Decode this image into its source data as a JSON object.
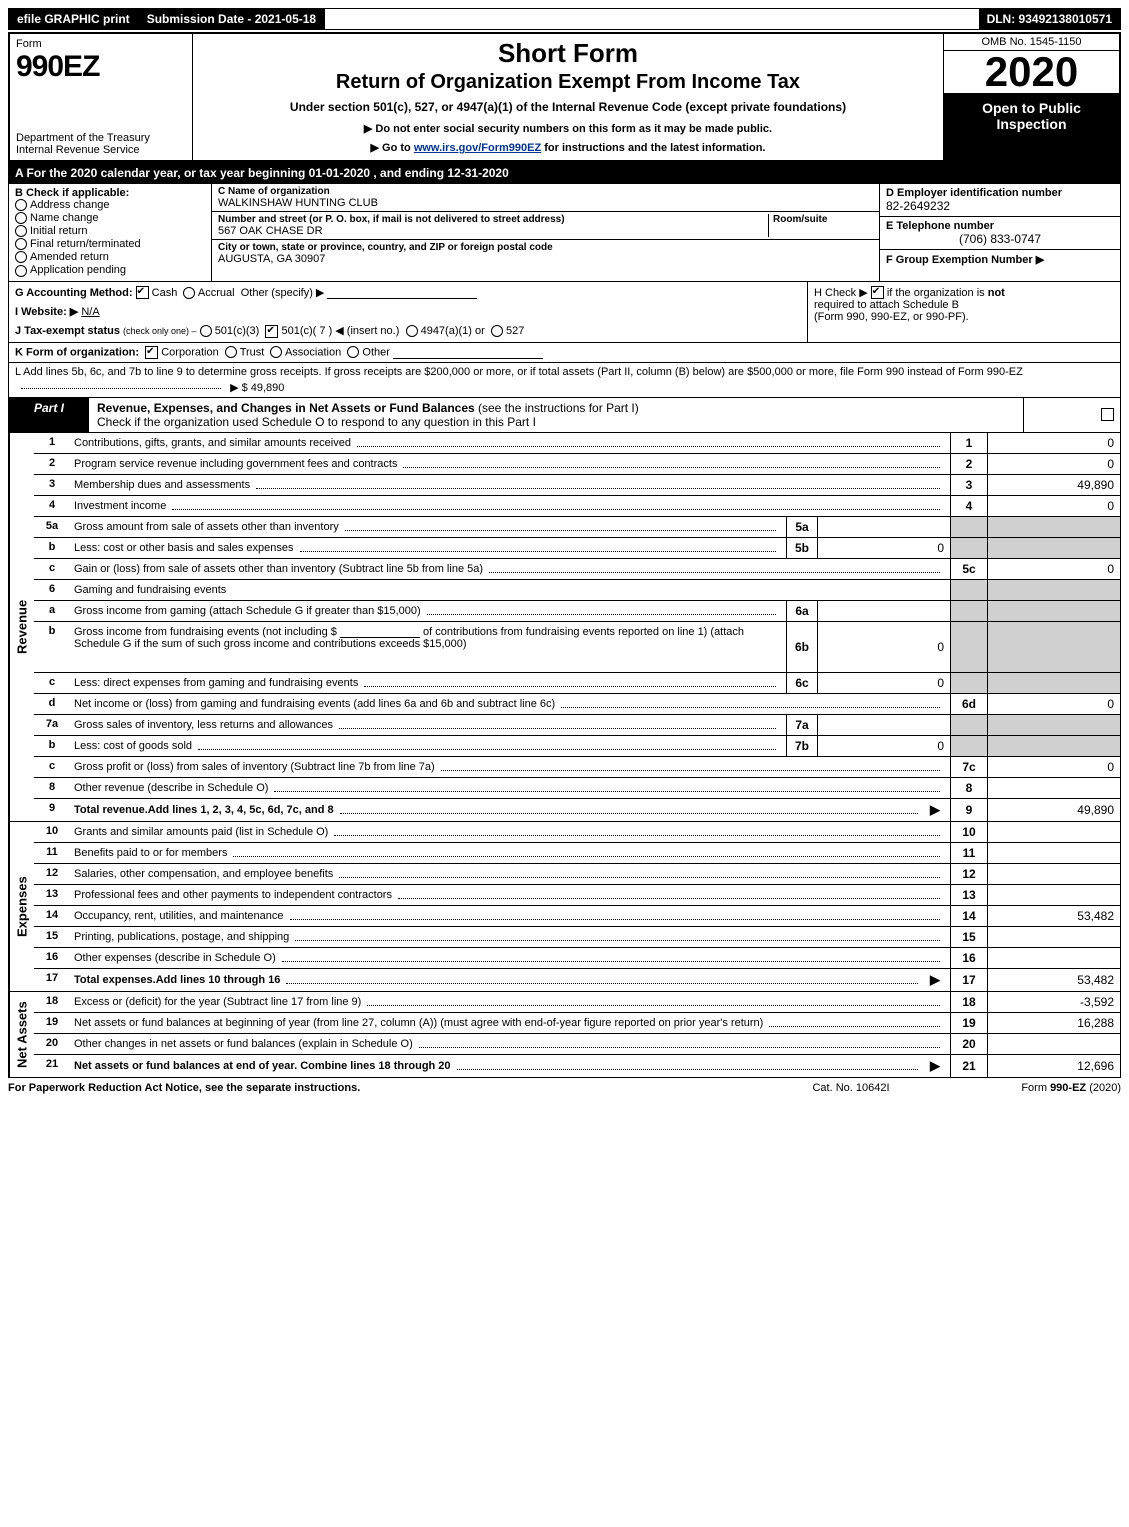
{
  "topbar": {
    "efile": "efile GRAPHIC print",
    "submission_label": "Submission Date - 2021-05-18",
    "dln": "DLN: 93492138010571"
  },
  "header": {
    "form_label": "Form",
    "form_number": "990EZ",
    "dept": "Department of the Treasury",
    "irs": "Internal Revenue Service",
    "short_form": "Short Form",
    "return_line": "Return of Organization Exempt From Income Tax",
    "under_section": "Under section 501(c), 527, or 4947(a)(1) of the Internal Revenue Code (except private foundations)",
    "donot": "▶ Do not enter social security numbers on this form as it may be made public.",
    "goto_pre": "▶ Go to ",
    "goto_link": "www.irs.gov/Form990EZ",
    "goto_post": " for instructions and the latest information.",
    "omb": "OMB No. 1545-1150",
    "year": "2020",
    "open_public": "Open to Public Inspection"
  },
  "period": "A For the 2020 calendar year, or tax year beginning 01-01-2020 , and ending 12-31-2020",
  "sectionB": {
    "title": "B Check if applicable:",
    "items": [
      "Address change",
      "Name change",
      "Initial return",
      "Final return/terminated",
      "Amended return",
      "Application pending"
    ]
  },
  "sectionC": {
    "name_label": "C Name of organization",
    "name_val": "WALKINSHAW HUNTING CLUB",
    "addr_label": "Number and street (or P. O. box, if mail is not delivered to street address)",
    "room_label": "Room/suite",
    "addr_val": "567 OAK CHASE DR",
    "city_label": "City or town, state or province, country, and ZIP or foreign postal code",
    "city_val": "AUGUSTA, GA   30907"
  },
  "sectionD": {
    "label": "D Employer identification number",
    "val": "82-2649232"
  },
  "sectionE": {
    "label": "E Telephone number",
    "val": "(706) 833-0747"
  },
  "sectionF": {
    "label": "F Group Exemption Number   ▶"
  },
  "sectionG": {
    "label": "G Accounting Method:",
    "cash": "Cash",
    "accrual": "Accrual",
    "other": "Other (specify) ▶"
  },
  "sectionH": {
    "text_pre": "H Check  ▶ ",
    "text_post": " if the organization is ",
    "not": "not",
    "line2": "required to attach Schedule B",
    "line3": "(Form 990, 990-EZ, or 990-PF)."
  },
  "sectionI": {
    "label": "I Website: ▶",
    "val": "N/A"
  },
  "sectionJ": {
    "label": "J Tax-exempt status",
    "hint": "(check only one) –",
    "opt1": "501(c)(3)",
    "opt2": "501(c)( 7 ) ◀ (insert no.)",
    "opt3": "4947(a)(1) or",
    "opt4": "527"
  },
  "sectionK": {
    "label": "K Form of organization:",
    "opts": [
      "Corporation",
      "Trust",
      "Association",
      "Other"
    ],
    "checked": 0
  },
  "sectionL": {
    "text": "L Add lines 5b, 6c, and 7b to line 9 to determine gross receipts. If gross receipts are $200,000 or more, or if total assets (Part II, column (B) below) are $500,000 or more, file Form 990 instead of Form 990-EZ",
    "arrow": "▶",
    "amount": "$ 49,890"
  },
  "partI": {
    "label": "Part I",
    "title": "Revenue, Expenses, and Changes in Net Assets or Fund Balances",
    "title_sub": " (see the instructions for Part I)",
    "schedule_o_line": "Check if the organization used Schedule O to respond to any question in this Part I",
    "schedule_o_box_val": ""
  },
  "revenue_label": "Revenue",
  "expenses_label": "Expenses",
  "netassets_label": "Net Assets",
  "lines": {
    "l1": {
      "num": "1",
      "desc": "Contributions, gifts, grants, and similar amounts received",
      "rn": "1",
      "val": "0"
    },
    "l2": {
      "num": "2",
      "desc": "Program service revenue including government fees and contracts",
      "rn": "2",
      "val": "0"
    },
    "l3": {
      "num": "3",
      "desc": "Membership dues and assessments",
      "rn": "3",
      "val": "49,890"
    },
    "l4": {
      "num": "4",
      "desc": "Investment income",
      "rn": "4",
      "val": "0"
    },
    "l5a": {
      "num": "5a",
      "desc": "Gross amount from sale of assets other than inventory",
      "in": "5a",
      "iv": ""
    },
    "l5b": {
      "num": "b",
      "desc": "Less: cost or other basis and sales expenses",
      "in": "5b",
      "iv": "0"
    },
    "l5c": {
      "num": "c",
      "desc": "Gain or (loss) from sale of assets other than inventory (Subtract line 5b from line 5a)",
      "rn": "5c",
      "val": "0"
    },
    "l6": {
      "num": "6",
      "desc": "Gaming and fundraising events"
    },
    "l6a": {
      "num": "a",
      "desc": "Gross income from gaming (attach Schedule G if greater than $15,000)",
      "in": "6a",
      "iv": ""
    },
    "l6b": {
      "num": "b",
      "desc_pre": "Gross income from fundraising events (not including $ ",
      "desc_mid": " of contributions from fundraising events reported on line 1) (attach Schedule G if the sum of such gross income and contributions exceeds $15,000)",
      "in": "6b",
      "iv": "0"
    },
    "l6c": {
      "num": "c",
      "desc": "Less: direct expenses from gaming and fundraising events",
      "in": "6c",
      "iv": "0"
    },
    "l6d": {
      "num": "d",
      "desc": "Net income or (loss) from gaming and fundraising events (add lines 6a and 6b and subtract line 6c)",
      "rn": "6d",
      "val": "0"
    },
    "l7a": {
      "num": "7a",
      "desc": "Gross sales of inventory, less returns and allowances",
      "in": "7a",
      "iv": ""
    },
    "l7b": {
      "num": "b",
      "desc": "Less: cost of goods sold",
      "in": "7b",
      "iv": "0"
    },
    "l7c": {
      "num": "c",
      "desc": "Gross profit or (loss) from sales of inventory (Subtract line 7b from line 7a)",
      "rn": "7c",
      "val": "0"
    },
    "l8": {
      "num": "8",
      "desc": "Other revenue (describe in Schedule O)",
      "rn": "8",
      "val": ""
    },
    "l9": {
      "num": "9",
      "desc": "Total revenue.",
      "desc2": " Add lines 1, 2, 3, 4, 5c, 6d, 7c, and 8",
      "rn": "9",
      "val": "49,890",
      "arrow": true
    },
    "l10": {
      "num": "10",
      "desc": "Grants and similar amounts paid (list in Schedule O)",
      "rn": "10",
      "val": ""
    },
    "l11": {
      "num": "11",
      "desc": "Benefits paid to or for members",
      "rn": "11",
      "val": ""
    },
    "l12": {
      "num": "12",
      "desc": "Salaries, other compensation, and employee benefits",
      "rn": "12",
      "val": ""
    },
    "l13": {
      "num": "13",
      "desc": "Professional fees and other payments to independent contractors",
      "rn": "13",
      "val": ""
    },
    "l14": {
      "num": "14",
      "desc": "Occupancy, rent, utilities, and maintenance",
      "rn": "14",
      "val": "53,482"
    },
    "l15": {
      "num": "15",
      "desc": "Printing, publications, postage, and shipping",
      "rn": "15",
      "val": ""
    },
    "l16": {
      "num": "16",
      "desc": "Other expenses (describe in Schedule O)",
      "rn": "16",
      "val": ""
    },
    "l17": {
      "num": "17",
      "desc": "Total expenses.",
      "desc2": " Add lines 10 through 16",
      "rn": "17",
      "val": "53,482",
      "arrow": true
    },
    "l18": {
      "num": "18",
      "desc": "Excess or (deficit) for the year (Subtract line 17 from line 9)",
      "rn": "18",
      "val": "-3,592"
    },
    "l19": {
      "num": "19",
      "desc": "Net assets or fund balances at beginning of year (from line 27, column (A)) (must agree with end-of-year figure reported on prior year's return)",
      "rn": "19",
      "val": "16,288"
    },
    "l20": {
      "num": "20",
      "desc": "Other changes in net assets or fund balances (explain in Schedule O)",
      "rn": "20",
      "val": ""
    },
    "l21": {
      "num": "21",
      "desc": "Net assets or fund balances at end of year. Combine lines 18 through 20",
      "rn": "21",
      "val": "12,696",
      "arrow": true
    }
  },
  "footer": {
    "left": "For Paperwork Reduction Act Notice, see the separate instructions.",
    "mid": "Cat. No. 10642I",
    "right_pre": "Form ",
    "right_form": "990-EZ",
    "right_post": " (2020)"
  },
  "colors": {
    "black": "#000000",
    "white": "#ffffff",
    "shaded": "#d0d0d0",
    "link": "#003399"
  }
}
